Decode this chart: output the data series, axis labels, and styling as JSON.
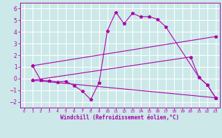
{
  "background_color": "#cce8e8",
  "grid_color": "#ffffff",
  "line_color": "#aa00aa",
  "xlabel": "Windchill (Refroidissement éolien,°C)",
  "ylim": [
    -2.5,
    6.5
  ],
  "xlim": [
    -0.5,
    23.5
  ],
  "yticks": [
    -2,
    -1,
    0,
    1,
    2,
    3,
    4,
    5,
    6
  ],
  "xticks": [
    0,
    1,
    2,
    3,
    4,
    5,
    6,
    7,
    8,
    9,
    10,
    11,
    12,
    13,
    14,
    15,
    16,
    17,
    18,
    19,
    20,
    21,
    22,
    23
  ],
  "lines": [
    {
      "x": [
        1,
        2,
        3,
        4,
        5,
        6,
        7,
        8,
        9,
        10,
        11,
        12,
        13,
        14,
        15,
        16,
        17,
        21,
        22,
        23
      ],
      "y": [
        1.1,
        -0.15,
        -0.2,
        -0.3,
        -0.25,
        -0.6,
        -1.1,
        -1.8,
        -0.35,
        4.1,
        5.7,
        4.7,
        5.6,
        5.3,
        5.3,
        5.1,
        4.45,
        0.1,
        -0.55,
        -1.65
      ]
    },
    {
      "x": [
        1,
        23
      ],
      "y": [
        1.1,
        3.6
      ]
    },
    {
      "x": [
        1,
        23
      ],
      "y": [
        -0.15,
        -1.65
      ]
    },
    {
      "x": [
        1,
        20,
        21,
        22,
        23
      ],
      "y": [
        -0.15,
        1.85,
        0.1,
        -0.55,
        -1.65
      ]
    }
  ]
}
